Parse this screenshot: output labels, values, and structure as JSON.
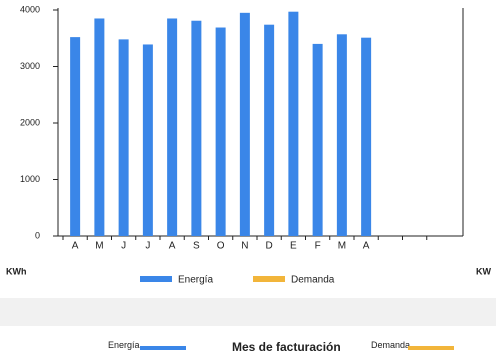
{
  "chart_data": {
    "type": "bar",
    "categories": [
      "A",
      "M",
      "J",
      "J",
      "A",
      "S",
      "O",
      "N",
      "D",
      "E",
      "F",
      "M",
      "A",
      null,
      null,
      null
    ],
    "series": [
      {
        "name": "Energía",
        "color": "#3a86e8",
        "values": [
          3520,
          3850,
          3480,
          3390,
          3850,
          3810,
          3690,
          3950,
          3740,
          3970,
          3400,
          3570,
          3510,
          null,
          null,
          null
        ]
      },
      {
        "name": "Demanda",
        "color": "#f2b53a",
        "axis": "y2",
        "values": [
          null,
          null,
          null,
          null,
          null,
          null,
          null,
          null,
          null,
          null,
          null,
          null,
          null,
          null,
          null,
          null
        ]
      }
    ],
    "ylim": [
      0,
      4000
    ],
    "yticks": [
      0,
      1000,
      2000,
      3000,
      4000
    ],
    "y_label": "KWh",
    "y2_label": "KW"
  },
  "footer": {
    "energy_label": "Energía",
    "title": "Mes de facturación",
    "demand_label": "Demanda"
  }
}
